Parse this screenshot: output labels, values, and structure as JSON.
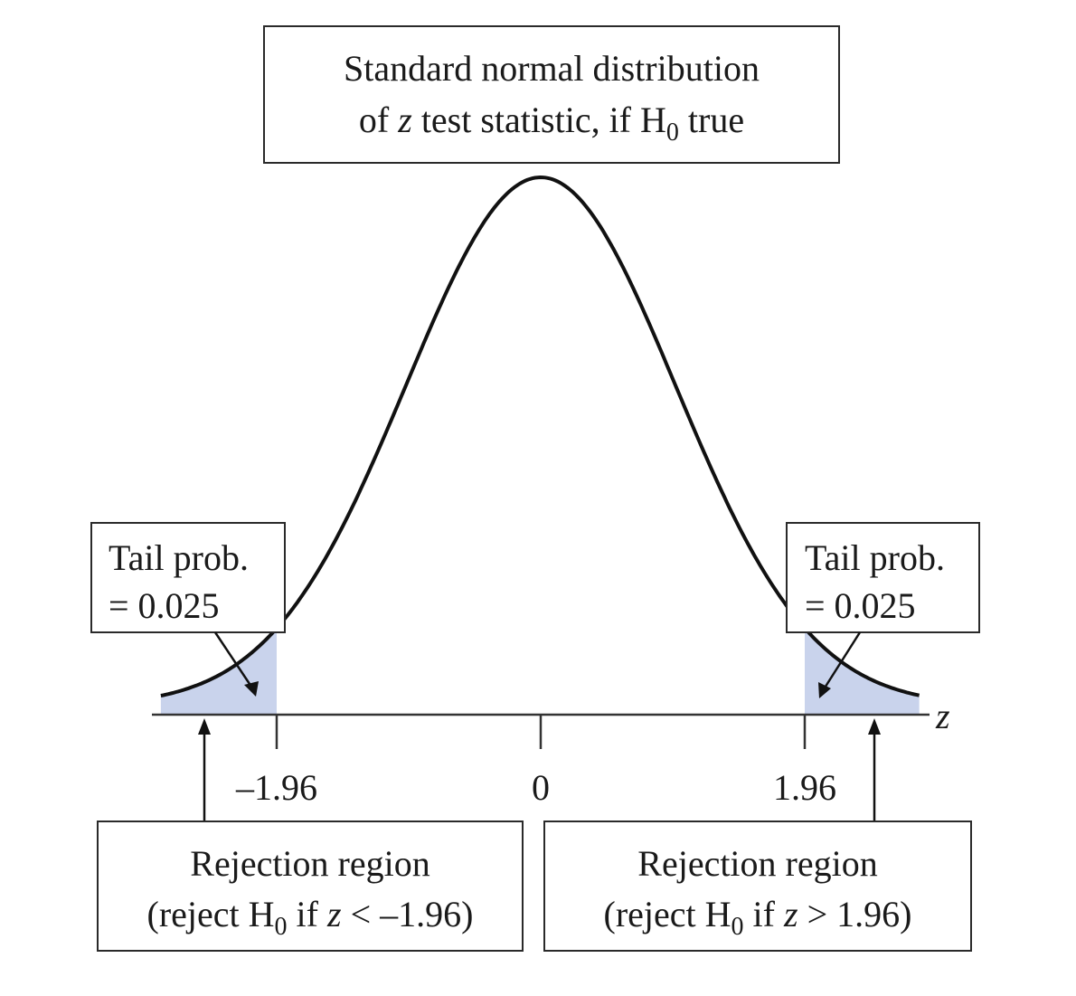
{
  "diagram": {
    "title_box": {
      "line1": "Standard normal distribution",
      "line2_pre": "of ",
      "line2_var": "z",
      "line2_mid": " test statistic, if H",
      "line2_sub": "0",
      "line2_post": " true"
    },
    "left_tail_box": {
      "line1": "Tail prob.",
      "line2": "= 0.025"
    },
    "right_tail_box": {
      "line1": "Tail prob.",
      "line2": "= 0.025"
    },
    "left_rejection_box": {
      "line1": "Rejection region",
      "line2_pre": "(reject H",
      "line2_sub": "0",
      "line2_mid": " if ",
      "line2_var": "z",
      "line2_post": " < –1.96)"
    },
    "right_rejection_box": {
      "line1": "Rejection region",
      "line2_pre": "(reject H",
      "line2_sub": "0",
      "line2_mid": " if ",
      "line2_var": "z",
      "line2_post": " > 1.96)"
    },
    "axis": {
      "variable": "z",
      "ticks": [
        {
          "value": -1.96,
          "label": "–1.96"
        },
        {
          "value": 0,
          "label": "0"
        },
        {
          "value": 1.96,
          "label": "1.96"
        }
      ]
    },
    "critical_value": 1.96,
    "tail_probability": 0.025,
    "shade_color": "#c9d3ec",
    "curve_color": "#111111"
  }
}
